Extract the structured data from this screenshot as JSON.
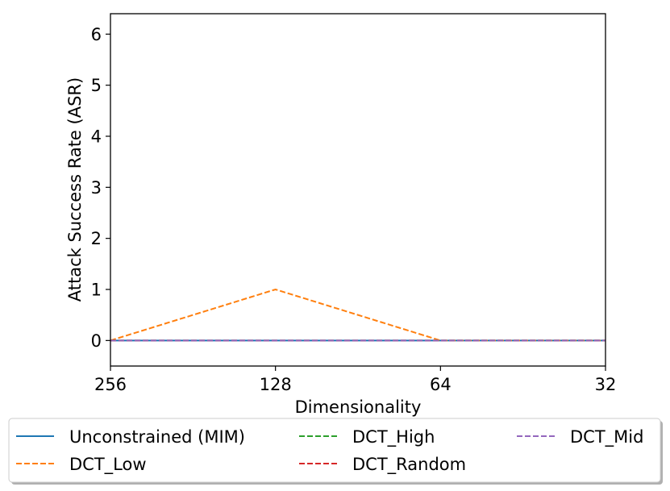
{
  "chart_data": {
    "type": "line",
    "title": "",
    "xlabel": "Dimensionality",
    "ylabel": "Attack Success Rate (ASR)",
    "categories": [
      "256",
      "128",
      "64",
      "32"
    ],
    "ylim": [
      -0.5,
      6.4
    ],
    "yticks": [
      "0",
      "1",
      "2",
      "3",
      "4",
      "5",
      "6"
    ],
    "grid": false,
    "legend_placement": "bottom",
    "series": [
      {
        "name": "Unconstrained (MIM)",
        "values": [
          0,
          0,
          0,
          0
        ],
        "color": "#1f77b4",
        "dash": "solid"
      },
      {
        "name": "DCT_Low",
        "values": [
          0,
          1,
          0,
          0
        ],
        "color": "#ff7f0e",
        "dash": "dashed"
      },
      {
        "name": "DCT_High",
        "values": [
          0,
          0,
          0,
          0
        ],
        "color": "#2ca02c",
        "dash": "dashed"
      },
      {
        "name": "DCT_Random",
        "values": [
          0,
          0,
          0,
          0
        ],
        "color": "#d62728",
        "dash": "dashed"
      },
      {
        "name": "DCT_Mid",
        "values": [
          0,
          0,
          0,
          0
        ],
        "color": "#9467bd",
        "dash": "dashed"
      }
    ]
  }
}
